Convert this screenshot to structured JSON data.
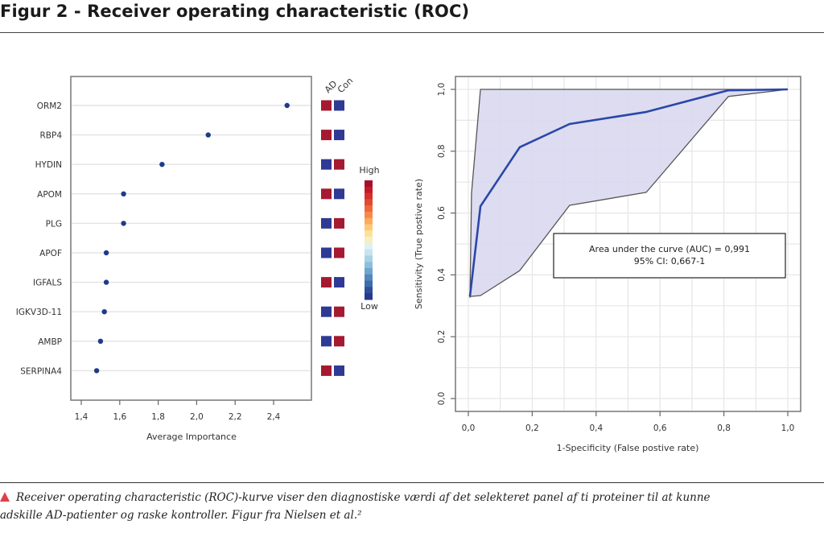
{
  "figure": {
    "title": "Figur 2 - Receiver operating characteristic (ROC)",
    "caption_line1": "Receiver operating characteristic (ROC)-kurve viser den diagnostiske værdi af det selekteret panel af ti proteiner til at kunne",
    "caption_line2": "adskille AD-patienter og raske kontroller. Figur fra Nielsen et al.²",
    "caption_icon": "triangle-up-icon",
    "accent_color": "#e0404a"
  },
  "chart_data": [
    {
      "type": "scatter",
      "title": "",
      "xlabel": "Average Importance",
      "ylabel": "",
      "xlim": [
        1.35,
        2.6
      ],
      "xticks": [
        1.4,
        1.6,
        1.8,
        2.0,
        2.2,
        2.4
      ],
      "xtick_labels": [
        "1,4",
        "1,6",
        "1,8",
        "2,0",
        "2,2",
        "2,4"
      ],
      "grid": "horizontal",
      "categories": [
        "ORM2",
        "RBP4",
        "HYDIN",
        "APOM",
        "PLG",
        "APOF",
        "IGFALS",
        "IGKV3D-11",
        "AMBP",
        "SERPINA4"
      ],
      "values": [
        2.47,
        2.06,
        1.82,
        1.62,
        1.62,
        1.53,
        1.53,
        1.52,
        1.5,
        1.48
      ],
      "point_color": "#1f3a8a",
      "heatmap": {
        "columns": [
          "AD",
          "Con"
        ],
        "levels": [
          [
            "high",
            "low"
          ],
          [
            "high",
            "low"
          ],
          [
            "low",
            "high"
          ],
          [
            "high",
            "low"
          ],
          [
            "low",
            "high"
          ],
          [
            "low",
            "high"
          ],
          [
            "high",
            "low"
          ],
          [
            "low",
            "high"
          ],
          [
            "low",
            "high"
          ],
          [
            "high",
            "low"
          ]
        ],
        "high_color": "#a51a30",
        "low_color": "#2e3a94"
      },
      "legend": {
        "high_label": "High",
        "low_label": "Low",
        "scale_colors": [
          "#a50f2a",
          "#c4192a",
          "#d7302a",
          "#e34a2f",
          "#ee6a3a",
          "#f68a48",
          "#fbab5c",
          "#fdc976",
          "#fde39a",
          "#f4efc4",
          "#dff0f4",
          "#c5e4ef",
          "#a9d2e6",
          "#8bbfdc",
          "#6ea5cf",
          "#5488bd",
          "#3e6bab",
          "#2f4f99",
          "#283a8a"
        ],
        "placement": "right"
      }
    },
    {
      "type": "line",
      "title": "",
      "xlabel": "1-Specificity (False postive rate)",
      "ylabel": "Sensitivity (True postive rate)",
      "xlim": [
        0,
        1
      ],
      "ylim": [
        0,
        1
      ],
      "xticks": [
        0.0,
        0.2,
        0.4,
        0.6,
        0.8,
        1.0
      ],
      "xtick_labels": [
        "0,0",
        "0,2",
        "0,4",
        "0,6",
        "0,8",
        "1,0"
      ],
      "yticks": [
        0.0,
        0.2,
        0.4,
        0.6,
        0.8,
        1.0
      ],
      "ytick_labels": [
        "0,0",
        "0,2",
        "0,4",
        "0,6",
        "0,8",
        "1,0"
      ],
      "grid": true,
      "series": [
        {
          "name": "ROC",
          "color": "#2a47a8",
          "x": [
            0.005,
            0.038,
            0.161,
            0.317,
            0.557,
            0.814,
            1.0
          ],
          "y": [
            0.33,
            0.622,
            0.813,
            0.888,
            0.927,
            0.997,
            1.0
          ]
        },
        {
          "name": "95% CI upper",
          "color": "#555555",
          "x": [
            0.005,
            0.01,
            0.038,
            1.0
          ],
          "y": [
            0.326,
            0.664,
            1.0,
            1.0
          ]
        },
        {
          "name": "95% CI lower",
          "color": "#555555",
          "x": [
            0.005,
            0.038,
            0.161,
            0.317,
            0.557,
            0.814,
            1.0
          ],
          "y": [
            0.33,
            0.333,
            0.414,
            0.625,
            0.667,
            0.977,
            1.0
          ]
        }
      ],
      "ci_fill_color": "#d9d8f0",
      "annotation": {
        "line1": "Area under the curve (AUC) = 0,991",
        "line2": "95% CI: 0,667-1",
        "auc": 0.991,
        "ci": [
          0.667,
          1
        ]
      }
    }
  ]
}
